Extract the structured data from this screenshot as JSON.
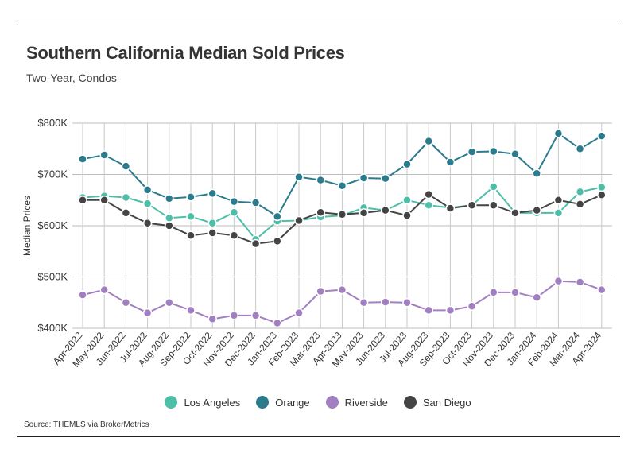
{
  "header": {
    "title": "Southern California Median Sold Prices",
    "subtitle": "Two-Year, Condos"
  },
  "footer": {
    "source": "Source:  THEMLS via BrokerMetrics"
  },
  "chart_data": {
    "type": "line",
    "title": "Southern California Median Sold Prices",
    "subtitle": "Two-Year, Condos",
    "xlabel": "",
    "ylabel": "Median Prices",
    "ylim": [
      400,
      800
    ],
    "yticks": [
      400,
      500,
      600,
      700,
      800
    ],
    "ytick_labels": [
      "$400K",
      "$500K",
      "$600K",
      "$700K",
      "$800K"
    ],
    "grid": "vertical and horizontal",
    "legend": "bottom",
    "categories": [
      "Apr-2022",
      "May-2022",
      "Jun-2022",
      "Jul-2022",
      "Aug-2022",
      "Sep-2022",
      "Oct-2022",
      "Nov-2022",
      "Dec-2022",
      "Jan-2023",
      "Feb-2023",
      "Mar-2023",
      "Apr-2023",
      "May-2023",
      "Jun-2023",
      "Jul-2023",
      "Aug-2023",
      "Sep-2023",
      "Oct-2023",
      "Nov-2023",
      "Dec-2023",
      "Jan-2024",
      "Feb-2024",
      "Mar-2024",
      "Apr-2024"
    ],
    "series": [
      {
        "name": "Los Angeles",
        "color": "#4dbfa8",
        "values": [
          655,
          658,
          655,
          643,
          615,
          618,
          605,
          626,
          573,
          609,
          610,
          617,
          620,
          635,
          630,
          650,
          640,
          635,
          640,
          676,
          625,
          625,
          625,
          666,
          675
        ]
      },
      {
        "name": "Orange",
        "color": "#2a7b8c",
        "values": [
          730,
          738,
          716,
          670,
          653,
          656,
          663,
          647,
          645,
          618,
          695,
          689,
          678,
          693,
          692,
          720,
          765,
          724,
          744,
          745,
          740,
          702,
          780,
          750,
          775
        ]
      },
      {
        "name": "Riverside",
        "color": "#a17fc0",
        "values": [
          465,
          475,
          450,
          430,
          450,
          435,
          418,
          425,
          425,
          410,
          430,
          472,
          475,
          450,
          451,
          450,
          435,
          435,
          443,
          470,
          470,
          460,
          492,
          490,
          475
        ]
      },
      {
        "name": "San Diego",
        "color": "#444444",
        "values": [
          650,
          650,
          625,
          605,
          600,
          581,
          586,
          581,
          565,
          570,
          610,
          626,
          622,
          625,
          630,
          620,
          661,
          634,
          640,
          640,
          625,
          630,
          650,
          642,
          660
        ]
      }
    ]
  }
}
